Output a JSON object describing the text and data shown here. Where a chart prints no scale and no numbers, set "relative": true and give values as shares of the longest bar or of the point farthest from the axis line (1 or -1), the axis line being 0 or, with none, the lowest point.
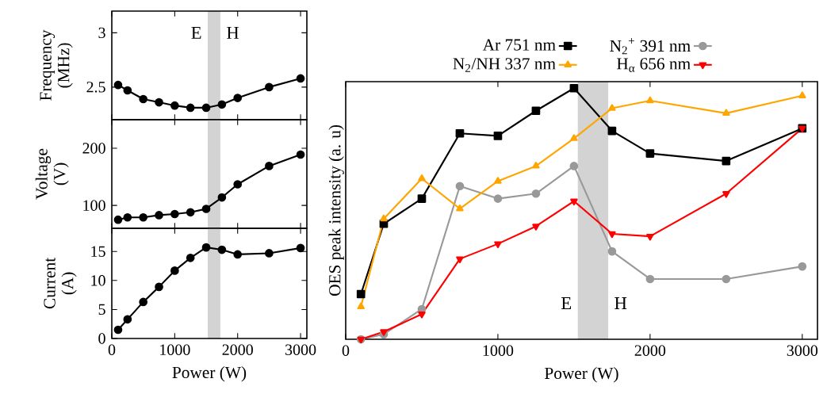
{
  "chart_data": [
    {
      "type": "line",
      "ylabel": "Frequency (MHz)",
      "x": [
        100,
        250,
        500,
        750,
        1000,
        1250,
        1500,
        1750,
        2000,
        2500,
        3000
      ],
      "xlim": [
        0,
        3100
      ],
      "xticks": [
        0,
        1000,
        2000,
        3000
      ],
      "ylim": [
        2.2,
        3.2
      ],
      "yticks": [
        2.5,
        3
      ],
      "tick_labels": "y",
      "marker": "circle",
      "series": [
        {
          "color": "#000000",
          "values": [
            2.52,
            2.47,
            2.39,
            2.36,
            2.33,
            2.31,
            2.31,
            2.34,
            2.4,
            2.5,
            2.58
          ]
        }
      ],
      "bands": [
        {
          "axis": "x",
          "from": 1525,
          "to": 1725,
          "color": "#d3d3d3"
        }
      ],
      "annotations": [
        "E",
        "H"
      ]
    },
    {
      "type": "line",
      "ylabel": "Voltage (V)",
      "x": [
        100,
        250,
        500,
        750,
        1000,
        1250,
        1500,
        1750,
        2000,
        2500,
        3000
      ],
      "xlim": [
        0,
        3100
      ],
      "xticks": [
        0,
        1000,
        2000,
        3000
      ],
      "ylim": [
        60,
        250
      ],
      "yticks": [
        100,
        200
      ],
      "tick_labels": "y",
      "marker": "circle",
      "series": [
        {
          "color": "#000000",
          "values": [
            75,
            79,
            79,
            83,
            85,
            88,
            94,
            114,
            137,
            169,
            189
          ]
        }
      ],
      "bands": [
        {
          "axis": "x",
          "from": 1525,
          "to": 1725,
          "color": "#d3d3d3"
        }
      ]
    },
    {
      "type": "line",
      "xlabel": "Power (W)",
      "ylabel": "Current (A)",
      "x": [
        100,
        250,
        500,
        750,
        1000,
        1250,
        1500,
        1750,
        2000,
        2500,
        3000
      ],
      "xlim": [
        0,
        3100
      ],
      "xticks": [
        0,
        1000,
        2000,
        3000
      ],
      "ylim": [
        0,
        19
      ],
      "yticks": [
        0,
        5,
        10,
        15
      ],
      "marker": "circle",
      "series": [
        {
          "color": "#000000",
          "values": [
            1.5,
            3.3,
            6.3,
            8.9,
            11.7,
            13.9,
            15.7,
            15.3,
            14.5,
            14.7,
            15.6
          ]
        }
      ],
      "bands": [
        {
          "axis": "x",
          "from": 1525,
          "to": 1725,
          "color": "#d3d3d3"
        }
      ]
    },
    {
      "type": "line",
      "relative": true,
      "xlabel": "Power (W)",
      "ylabel": "OES peak intensity (a. u)",
      "x": [
        100,
        250,
        500,
        750,
        1000,
        1250,
        1500,
        1750,
        2000,
        2500,
        3000
      ],
      "xlim": [
        0,
        3100
      ],
      "xticks": [
        0,
        1000,
        2000,
        3000
      ],
      "legend": "top",
      "series": [
        {
          "name": "Ar 751 nm",
          "color": "#000000",
          "marker": "square",
          "values": [
            0.18,
            0.46,
            0.56,
            0.82,
            0.81,
            0.91,
            1,
            0.83,
            0.74,
            0.71,
            0.84
          ]
        },
        {
          "name": "N$_{2}$$^{+}$ 391 nm",
          "color": "#999999",
          "marker": "circle",
          "values": [
            0,
            0.02,
            0.12,
            0.61,
            0.56,
            0.58,
            0.69,
            0.35,
            0.24,
            0.24,
            0.29
          ]
        },
        {
          "name": "N$_{2}$/NH 337 nm",
          "color": "#ffa500",
          "marker": "triangle",
          "values": [
            0.13,
            0.48,
            0.64,
            0.52,
            0.63,
            0.69,
            0.8,
            0.92,
            0.95,
            0.9,
            0.97
          ]
        },
        {
          "name": "H$_{α}$ 656 nm",
          "color": "#ff0000",
          "marker": "triangle-down",
          "values": [
            0,
            0.03,
            0.1,
            0.32,
            0.38,
            0.45,
            0.55,
            0.42,
            0.41,
            0.58,
            0.84
          ]
        }
      ],
      "bands": [
        {
          "axis": "x",
          "from": 1525,
          "to": 1725,
          "color": "#d3d3d3"
        }
      ],
      "annotations": [
        "E",
        "H"
      ]
    }
  ]
}
